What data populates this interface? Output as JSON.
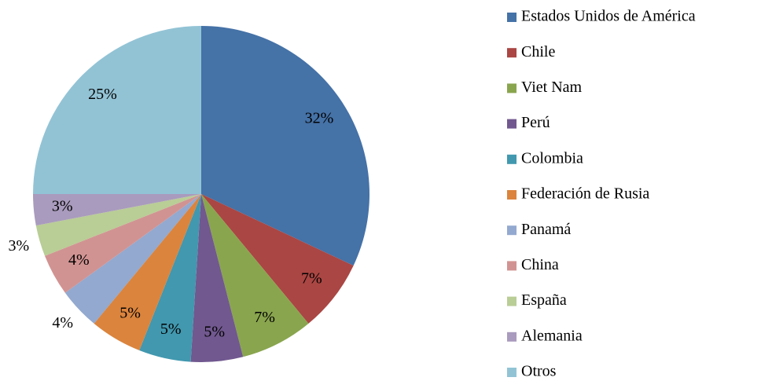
{
  "chart_data": {
    "type": "pie",
    "categories": [
      "Estados Unidos de América",
      "Chile",
      "Viet Nam",
      "Perú",
      "Colombia",
      "Federación de Rusia",
      "Panamá",
      "China",
      "España",
      "Alemania",
      "Otros"
    ],
    "values": [
      32,
      7,
      7,
      5,
      5,
      5,
      4,
      4,
      3,
      3,
      25
    ],
    "value_labels": [
      "32%",
      "7%",
      "7%",
      "5%",
      "5%",
      "5%",
      "4%",
      "4%",
      "3%",
      "3%",
      "25%"
    ],
    "colors": [
      "#4572a7",
      "#aa4643",
      "#89a54e",
      "#71588f",
      "#4198af",
      "#db843d",
      "#93a9cf",
      "#d19392",
      "#b9cd96",
      "#a99bbd",
      "#92c3d5"
    ],
    "legend": "right"
  }
}
